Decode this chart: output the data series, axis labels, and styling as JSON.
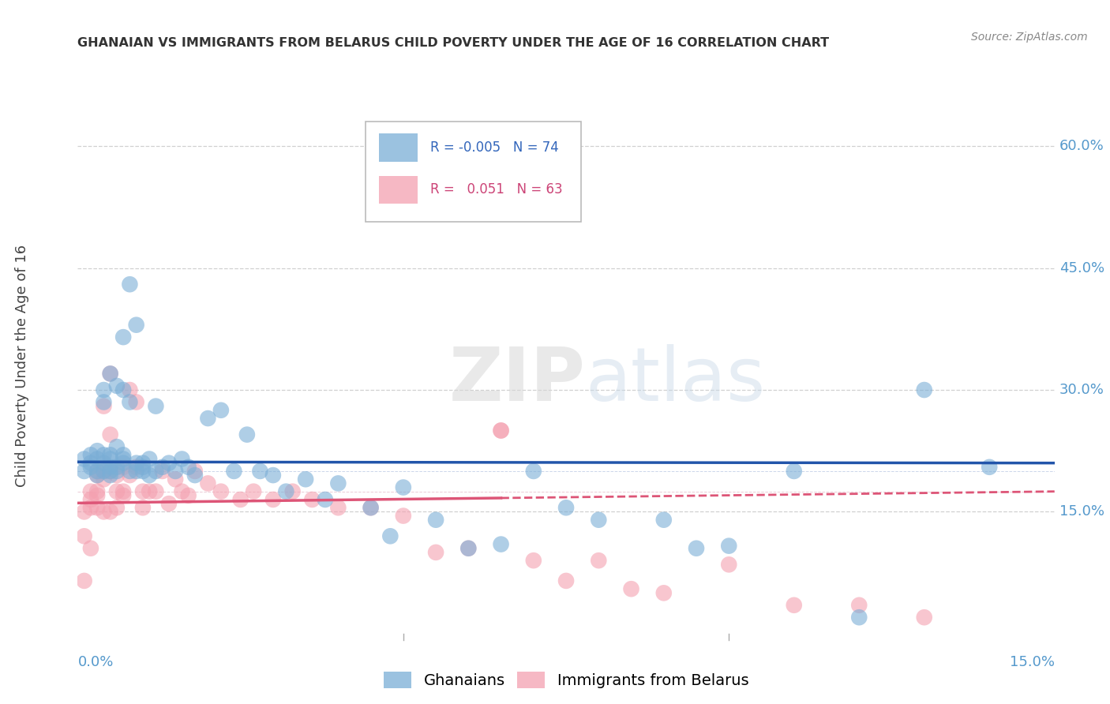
{
  "title": "GHANAIAN VS IMMIGRANTS FROM BELARUS CHILD POVERTY UNDER THE AGE OF 16 CORRELATION CHART",
  "source": "Source: ZipAtlas.com",
  "ylabel": "Child Poverty Under the Age of 16",
  "xlim": [
    0.0,
    0.15
  ],
  "ylim": [
    0.0,
    0.65
  ],
  "y_ticks": [
    0.15,
    0.3,
    0.45,
    0.6
  ],
  "y_tick_labels": [
    "15.0%",
    "30.0%",
    "45.0%",
    "60.0%"
  ],
  "x_tick_labels": [
    "0.0%",
    "15.0%"
  ],
  "background_color": "#ffffff",
  "grid_color": "#d0d0d0",
  "blue_color": "#7aaed6",
  "pink_color": "#f4a0b0",
  "blue_line_color": "#2255aa",
  "pink_line_color": "#dd5577",
  "blue_r": -0.005,
  "blue_n": 74,
  "pink_r": 0.051,
  "pink_n": 63,
  "ghanaians_x": [
    0.001,
    0.001,
    0.002,
    0.002,
    0.002,
    0.003,
    0.003,
    0.003,
    0.003,
    0.004,
    0.004,
    0.004,
    0.004,
    0.004,
    0.005,
    0.005,
    0.005,
    0.005,
    0.005,
    0.005,
    0.006,
    0.006,
    0.006,
    0.006,
    0.007,
    0.007,
    0.007,
    0.007,
    0.007,
    0.008,
    0.008,
    0.008,
    0.009,
    0.009,
    0.009,
    0.01,
    0.01,
    0.01,
    0.011,
    0.011,
    0.012,
    0.012,
    0.013,
    0.014,
    0.015,
    0.016,
    0.017,
    0.018,
    0.02,
    0.022,
    0.024,
    0.026,
    0.028,
    0.03,
    0.032,
    0.035,
    0.038,
    0.04,
    0.045,
    0.048,
    0.05,
    0.055,
    0.06,
    0.065,
    0.07,
    0.075,
    0.08,
    0.09,
    0.095,
    0.1,
    0.11,
    0.12,
    0.13,
    0.14
  ],
  "ghanaians_y": [
    0.2,
    0.215,
    0.205,
    0.21,
    0.22,
    0.195,
    0.2,
    0.215,
    0.225,
    0.2,
    0.21,
    0.22,
    0.285,
    0.3,
    0.195,
    0.2,
    0.205,
    0.215,
    0.22,
    0.32,
    0.2,
    0.205,
    0.23,
    0.305,
    0.21,
    0.215,
    0.22,
    0.3,
    0.365,
    0.2,
    0.285,
    0.43,
    0.2,
    0.21,
    0.38,
    0.2,
    0.205,
    0.21,
    0.195,
    0.215,
    0.2,
    0.28,
    0.205,
    0.21,
    0.2,
    0.215,
    0.205,
    0.195,
    0.265,
    0.275,
    0.2,
    0.245,
    0.2,
    0.195,
    0.175,
    0.19,
    0.165,
    0.185,
    0.155,
    0.12,
    0.18,
    0.14,
    0.105,
    0.11,
    0.2,
    0.155,
    0.14,
    0.14,
    0.105,
    0.108,
    0.2,
    0.02,
    0.3,
    0.205
  ],
  "belarus_x": [
    0.001,
    0.001,
    0.001,
    0.002,
    0.002,
    0.002,
    0.002,
    0.003,
    0.003,
    0.003,
    0.003,
    0.003,
    0.004,
    0.004,
    0.004,
    0.004,
    0.005,
    0.005,
    0.005,
    0.005,
    0.006,
    0.006,
    0.006,
    0.007,
    0.007,
    0.007,
    0.008,
    0.008,
    0.009,
    0.009,
    0.01,
    0.01,
    0.011,
    0.012,
    0.013,
    0.014,
    0.015,
    0.016,
    0.017,
    0.018,
    0.02,
    0.022,
    0.025,
    0.027,
    0.03,
    0.033,
    0.036,
    0.04,
    0.045,
    0.05,
    0.055,
    0.06,
    0.065,
    0.07,
    0.075,
    0.08,
    0.085,
    0.09,
    0.1,
    0.11,
    0.12,
    0.13,
    0.065
  ],
  "belarus_y": [
    0.12,
    0.15,
    0.065,
    0.155,
    0.165,
    0.175,
    0.105,
    0.175,
    0.195,
    0.2,
    0.17,
    0.155,
    0.19,
    0.2,
    0.28,
    0.15,
    0.245,
    0.2,
    0.15,
    0.32,
    0.175,
    0.195,
    0.155,
    0.175,
    0.205,
    0.17,
    0.195,
    0.3,
    0.285,
    0.205,
    0.175,
    0.155,
    0.175,
    0.175,
    0.2,
    0.16,
    0.19,
    0.175,
    0.17,
    0.2,
    0.185,
    0.175,
    0.165,
    0.175,
    0.165,
    0.175,
    0.165,
    0.155,
    0.155,
    0.145,
    0.1,
    0.105,
    0.25,
    0.09,
    0.065,
    0.09,
    0.055,
    0.05,
    0.085,
    0.035,
    0.035,
    0.02,
    0.25
  ]
}
